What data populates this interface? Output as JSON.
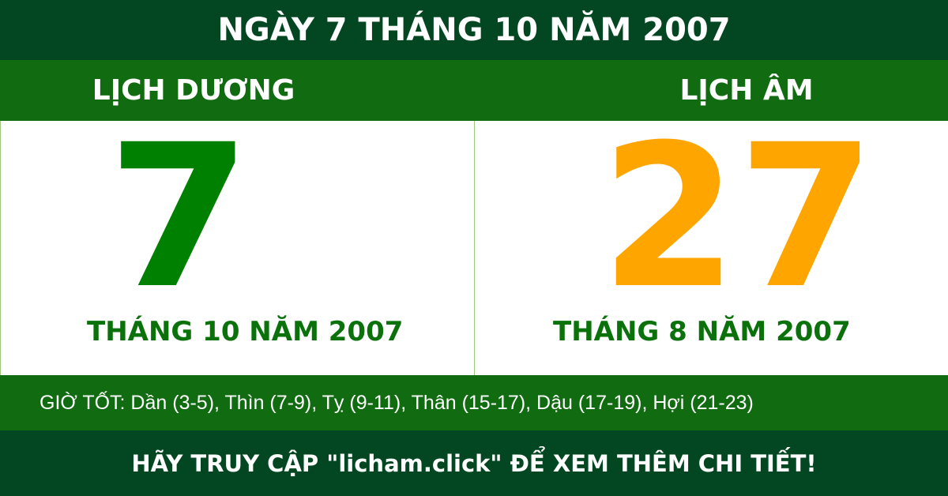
{
  "title": "NGÀY 7 THÁNG 10 NĂM 2007",
  "solar": {
    "heading": "LỊCH DƯƠNG",
    "day": "7",
    "month_year": "THÁNG 10 NĂM 2007"
  },
  "lunar": {
    "heading": "LỊCH ÂM",
    "day": "27",
    "month_year": "THÁNG 8 NĂM 2007"
  },
  "good_hours": "GIỜ TỐT: Dần (3-5), Thìn (7-9), Tỵ (9-11), Thân (15-17), Dậu (17-19), Hợi (21-23)",
  "footer": "HÃY TRUY CẬP \"licham.click\" ĐỂ XEM THÊM CHI TIẾT!",
  "colors": {
    "dark_green": "#034722",
    "green": "#116b11",
    "solar_day": "#008000",
    "lunar_day": "#ffa500"
  }
}
